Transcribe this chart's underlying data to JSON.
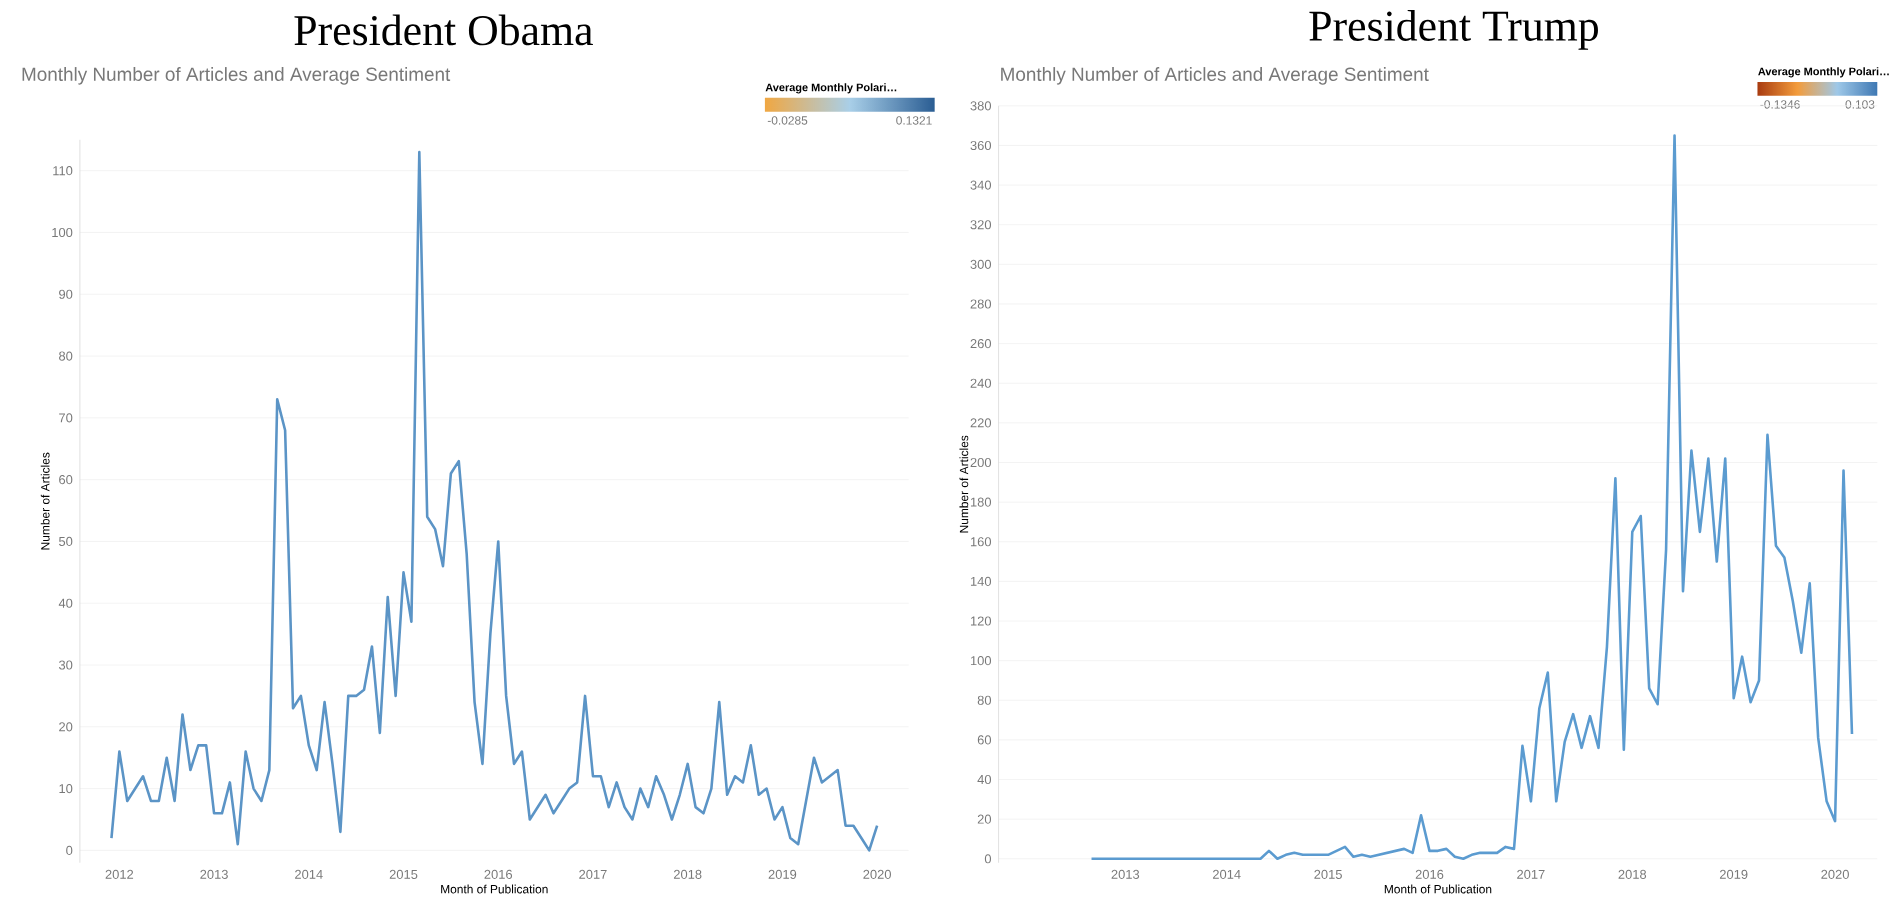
{
  "chart_data": [
    {
      "type": "line",
      "title": "President Obama",
      "subtitle": "Monthly Number of Articles and Average Sentiment",
      "xlabel": "Month of Publication",
      "ylabel": "Number of Articles",
      "color": "#5b94c6",
      "grid": "y",
      "clabel": "Average Monthly Polari…",
      "clim": [
        -0.0285,
        0.1321
      ],
      "cticks": [
        -0.0285,
        0.1321
      ],
      "xlim": [
        "2011-08",
        "2020-05"
      ],
      "ylim": [
        -2,
        115
      ],
      "xticks": [
        "2012",
        "2013",
        "2014",
        "2015",
        "2016",
        "2017",
        "2018",
        "2019",
        "2020"
      ],
      "yticks": [
        0,
        10,
        20,
        30,
        40,
        50,
        60,
        70,
        80,
        90,
        100,
        110
      ],
      "x": [
        "2011-12",
        "2012-01",
        "2012-02",
        "2012-03",
        "2012-04",
        "2012-05",
        "2012-06",
        "2012-07",
        "2012-08",
        "2012-09",
        "2012-10",
        "2012-11",
        "2012-12",
        "2013-01",
        "2013-02",
        "2013-03",
        "2013-04",
        "2013-05",
        "2013-06",
        "2013-07",
        "2013-08",
        "2013-09",
        "2013-10",
        "2013-11",
        "2013-12",
        "2014-01",
        "2014-02",
        "2014-03",
        "2014-04",
        "2014-05",
        "2014-06",
        "2014-07",
        "2014-08",
        "2014-09",
        "2014-10",
        "2014-11",
        "2014-12",
        "2015-01",
        "2015-02",
        "2015-03",
        "2015-04",
        "2015-05",
        "2015-06",
        "2015-07",
        "2015-08",
        "2015-09",
        "2015-10",
        "2015-11",
        "2015-12",
        "2016-01",
        "2016-02",
        "2016-03",
        "2016-04",
        "2016-05",
        "2016-06",
        "2016-07",
        "2016-08",
        "2016-09",
        "2016-10",
        "2016-11",
        "2016-12",
        "2017-01",
        "2017-02",
        "2017-03",
        "2017-04",
        "2017-05",
        "2017-06",
        "2017-07",
        "2017-08",
        "2017-09",
        "2017-10",
        "2017-11",
        "2017-12",
        "2018-01",
        "2018-02",
        "2018-03",
        "2018-04",
        "2018-05",
        "2018-06",
        "2018-07",
        "2018-08",
        "2018-09",
        "2018-10",
        "2018-11",
        "2018-12",
        "2019-01",
        "2019-02",
        "2019-03",
        "2019-04",
        "2019-05",
        "2019-06",
        "2019-07",
        "2019-08",
        "2019-09",
        "2019-10",
        "2019-11",
        "2019-12",
        "2020-01"
      ],
      "values": [
        2,
        16,
        8,
        10,
        12,
        8,
        8,
        15,
        8,
        22,
        13,
        17,
        17,
        6,
        6,
        11,
        1,
        16,
        10,
        8,
        13,
        73,
        68,
        23,
        25,
        17,
        13,
        24,
        14,
        3,
        25,
        25,
        26,
        33,
        19,
        41,
        25,
        45,
        37,
        113,
        54,
        52,
        46,
        61,
        63,
        48,
        24,
        14,
        35,
        50,
        25,
        14,
        16,
        5,
        7,
        9,
        6,
        8,
        10,
        11,
        25,
        12,
        12,
        7,
        11,
        7,
        5,
        10,
        7,
        12,
        9,
        5,
        9,
        14,
        7,
        6,
        10,
        24,
        9,
        12,
        11,
        17,
        9,
        10,
        5,
        7,
        2,
        1,
        8,
        15,
        11,
        12,
        13,
        4,
        4,
        2,
        0,
        4
      ]
    },
    {
      "type": "line",
      "title": "President Trump",
      "subtitle": "Monthly Number of Articles and Average Sentiment",
      "xlabel": "Month of Publication",
      "ylabel": "Number of Articles",
      "color": "#5b9bd0",
      "grid": "y",
      "clabel": "Average Monthly Polari…",
      "clim": [
        -0.1346,
        0.103
      ],
      "cticks": [
        -0.1346,
        0.103
      ],
      "xlim": [
        "2011-10",
        "2020-06"
      ],
      "ylim": [
        -2,
        380
      ],
      "xticks": [
        "2013",
        "2014",
        "2015",
        "2016",
        "2017",
        "2018",
        "2019",
        "2020"
      ],
      "yticks": [
        0,
        20,
        40,
        60,
        80,
        100,
        120,
        140,
        160,
        180,
        200,
        220,
        240,
        260,
        280,
        300,
        320,
        340,
        360,
        380
      ],
      "x": [
        "2012-09",
        "2012-10",
        "2012-11",
        "2012-12",
        "2013-01",
        "2013-02",
        "2013-03",
        "2013-04",
        "2013-05",
        "2013-06",
        "2013-07",
        "2013-08",
        "2013-09",
        "2013-10",
        "2013-11",
        "2013-12",
        "2014-01",
        "2014-02",
        "2014-03",
        "2014-04",
        "2014-05",
        "2014-06",
        "2014-07",
        "2014-08",
        "2014-09",
        "2014-10",
        "2014-11",
        "2014-12",
        "2015-01",
        "2015-02",
        "2015-03",
        "2015-04",
        "2015-05",
        "2015-06",
        "2015-07",
        "2015-08",
        "2015-09",
        "2015-10",
        "2015-11",
        "2015-12",
        "2016-01",
        "2016-02",
        "2016-03",
        "2016-04",
        "2016-05",
        "2016-06",
        "2016-07",
        "2016-08",
        "2016-09",
        "2016-10",
        "2016-11",
        "2016-12",
        "2017-01",
        "2017-02",
        "2017-03",
        "2017-04",
        "2017-05",
        "2017-06",
        "2017-07",
        "2017-08",
        "2017-09",
        "2017-10",
        "2017-11",
        "2017-12",
        "2018-01",
        "2018-02",
        "2018-03",
        "2018-04",
        "2018-05",
        "2018-06",
        "2018-07",
        "2018-08",
        "2018-09",
        "2018-10",
        "2018-11",
        "2018-12",
        "2019-01",
        "2019-02",
        "2019-03",
        "2019-04",
        "2019-05",
        "2019-06",
        "2019-07",
        "2019-08",
        "2019-09",
        "2019-10",
        "2019-11",
        "2019-12",
        "2020-01",
        "2020-02",
        "2020-03"
      ],
      "values": [
        0,
        0,
        0,
        0,
        0,
        0,
        0,
        0,
        0,
        0,
        0,
        0,
        0,
        0,
        0,
        0,
        0,
        0,
        0,
        0,
        0,
        4,
        0,
        2,
        3,
        2,
        2,
        2,
        2,
        4,
        6,
        1,
        2,
        1,
        2,
        3,
        4,
        5,
        3,
        22,
        4,
        4,
        5,
        1,
        0,
        2,
        3,
        3,
        3,
        6,
        5,
        57,
        29,
        76,
        94,
        29,
        59,
        73,
        56,
        72,
        56,
        107,
        192,
        55,
        165,
        173,
        86,
        78,
        156,
        365,
        135,
        206,
        165,
        202,
        150,
        202,
        81,
        102,
        79,
        90,
        214,
        158,
        152,
        130,
        104,
        139,
        61,
        29,
        19,
        196,
        63
      ]
    }
  ]
}
